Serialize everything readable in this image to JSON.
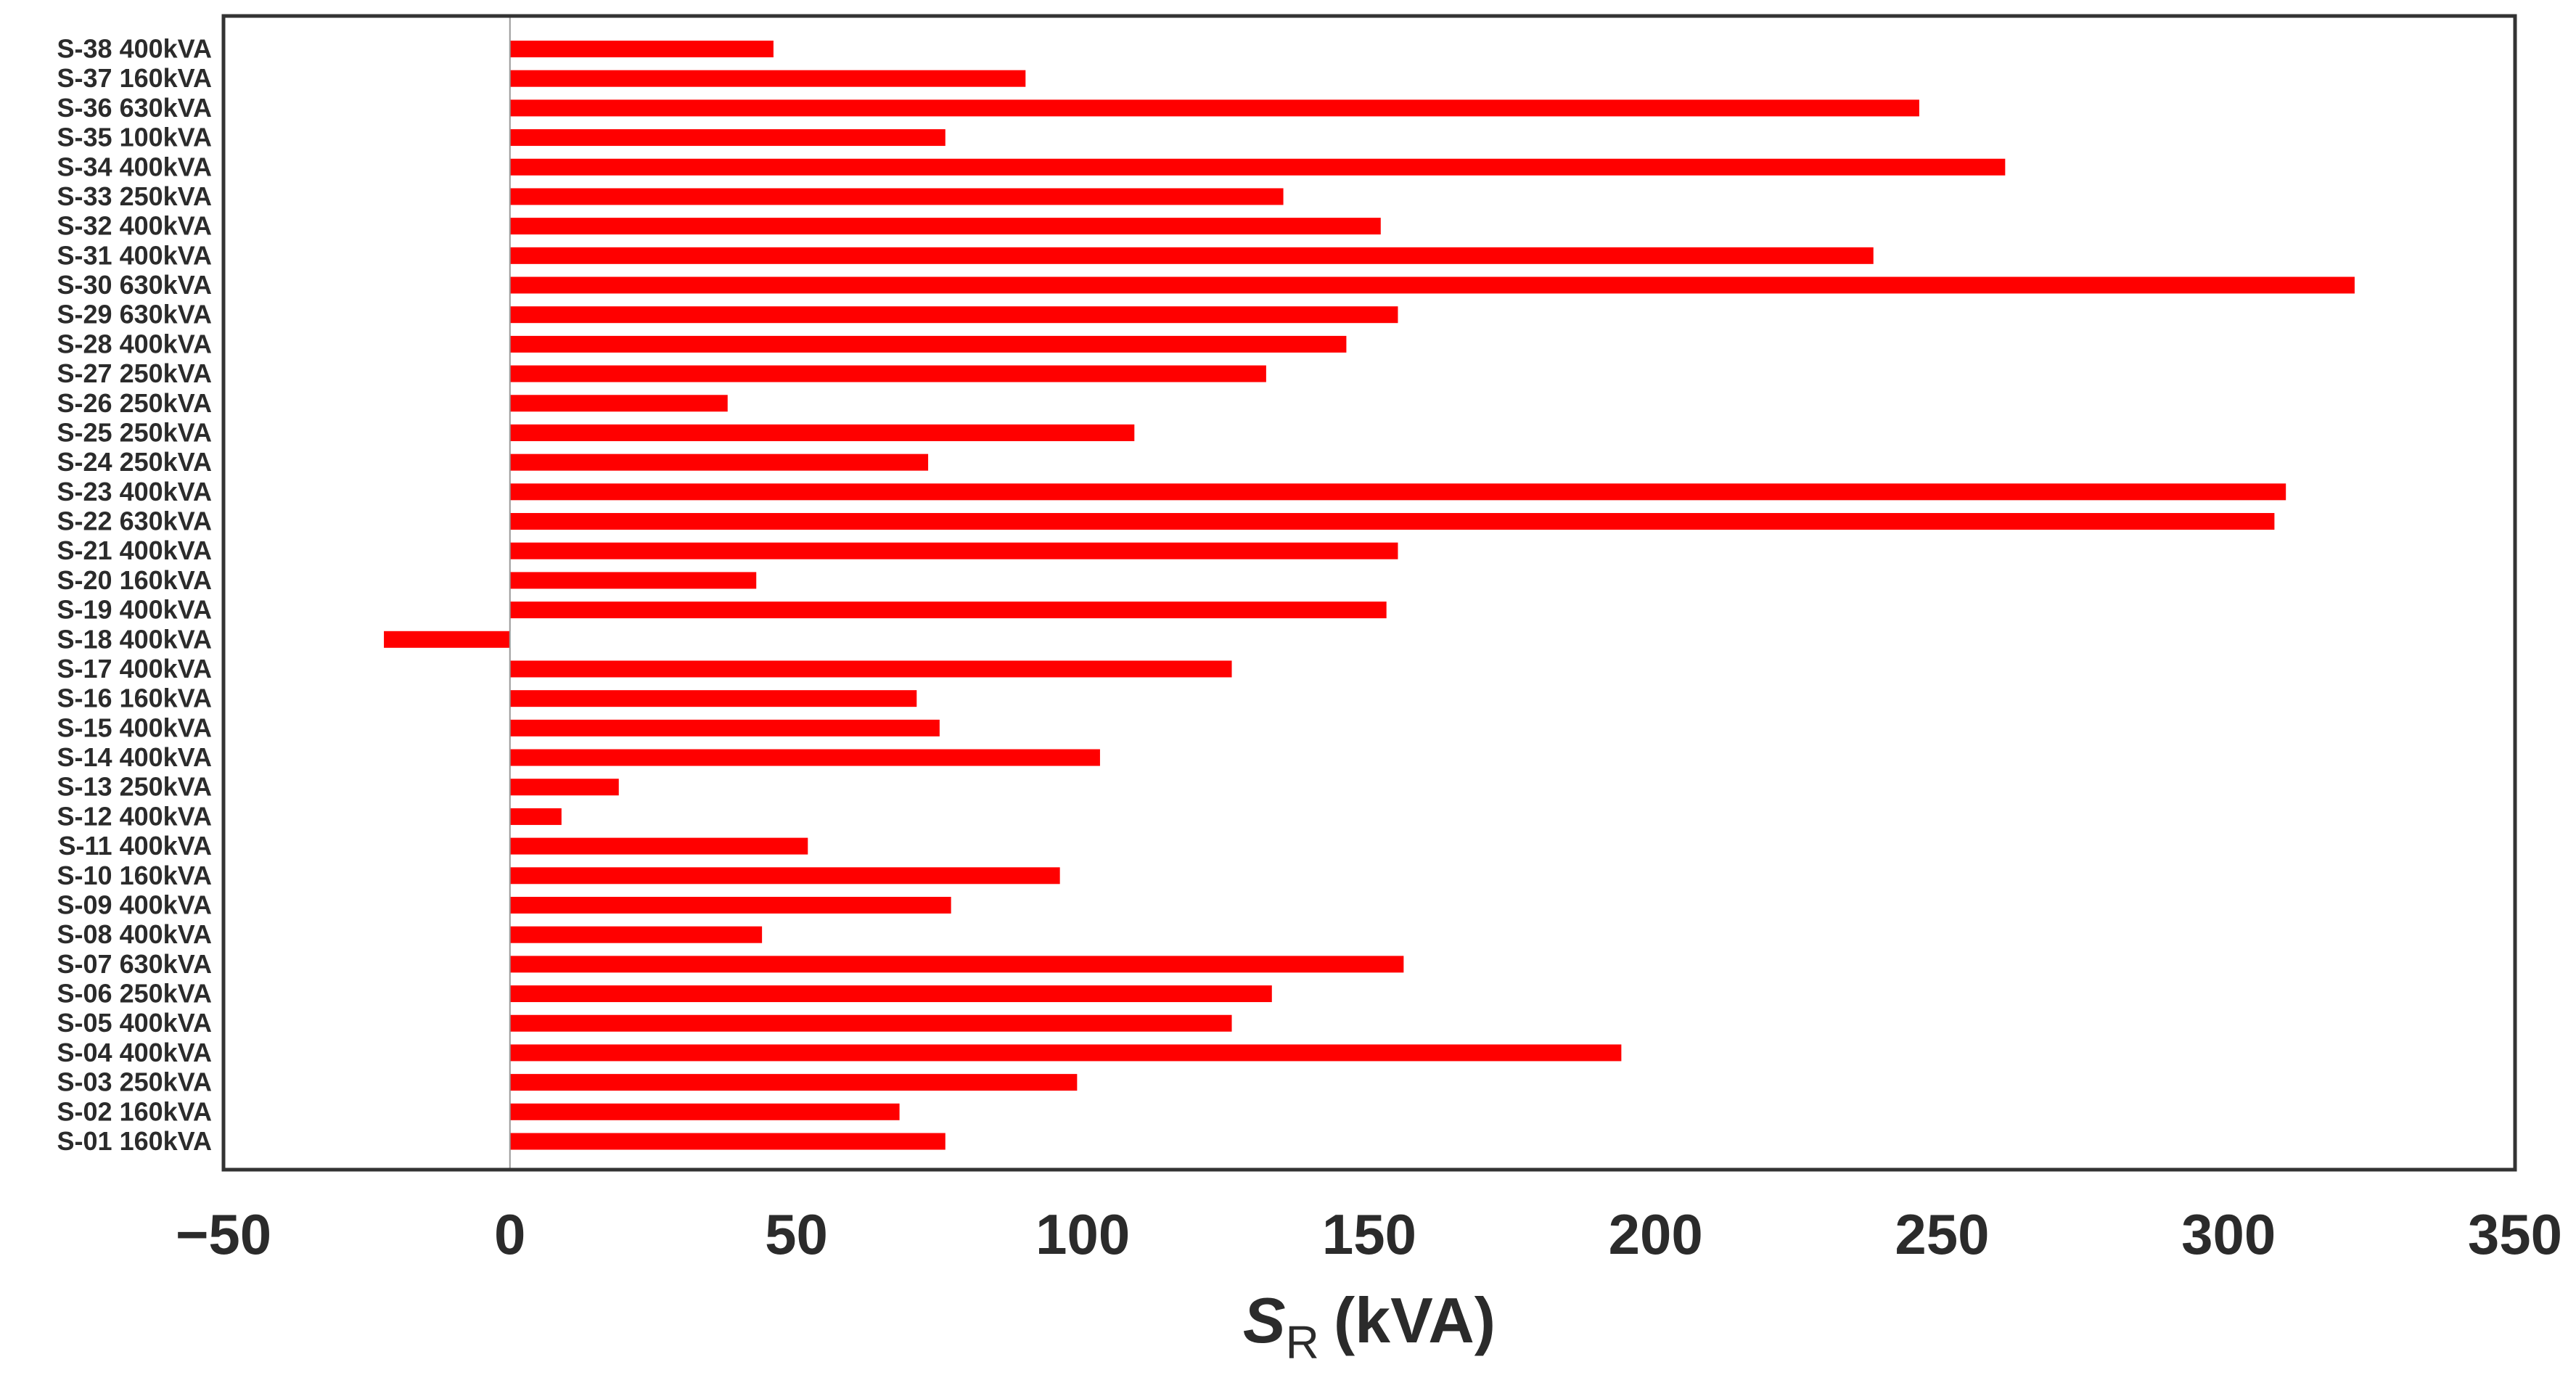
{
  "chart_data": {
    "type": "bar",
    "orientation": "horizontal",
    "title": "",
    "xlabel_main": "S",
    "xlabel_sub": "R",
    "xlabel_unit": "(kVA)",
    "xlim": [
      -50,
      350
    ],
    "xticks": [
      -50,
      0,
      50,
      100,
      150,
      200,
      250,
      300,
      350
    ],
    "xtick_labels": [
      "−50",
      "0",
      "50",
      "100",
      "150",
      "200",
      "250",
      "300",
      "350"
    ],
    "grid": false,
    "bar_color": "#ff0000",
    "zero_line_color": "#999999",
    "frame_color": "#333333",
    "categories": [
      "S-01 160kVA",
      "S-02 160kVA",
      "S-03 250kVA",
      "S-04 400kVA",
      "S-05 400kVA",
      "S-06 250kVA",
      "S-07 630kVA",
      "S-08 400kVA",
      "S-09 400kVA",
      "S-10 160kVA",
      "S-11 400kVA",
      "S-12 400kVA",
      "S-13 250kVA",
      "S-14 400kVA",
      "S-15 400kVA",
      "S-16 160kVA",
      "S-17 400kVA",
      "S-18 400kVA",
      "S-19 400kVA",
      "S-20 160kVA",
      "S-21 400kVA",
      "S-22 630kVA",
      "S-23 400kVA",
      "S-24 250kVA",
      "S-25 250kVA",
      "S-26 250kVA",
      "S-27 250kVA",
      "S-28 400kVA",
      "S-29 630kVA",
      "S-30 630kVA",
      "S-31 400kVA",
      "S-32 400kVA",
      "S-33 250kVA",
      "S-34 400kVA",
      "S-35 100kVA",
      "S-36 630kVA",
      "S-37 160kVA",
      "S-38 400kVA"
    ],
    "values": [
      76,
      68,
      99,
      194,
      126,
      133,
      156,
      44,
      77,
      96,
      52,
      9,
      19,
      103,
      75,
      71,
      126,
      -22,
      153,
      43,
      155,
      308,
      310,
      73,
      109,
      38,
      132,
      146,
      155,
      322,
      238,
      152,
      135,
      261,
      76,
      246,
      90,
      46
    ]
  }
}
